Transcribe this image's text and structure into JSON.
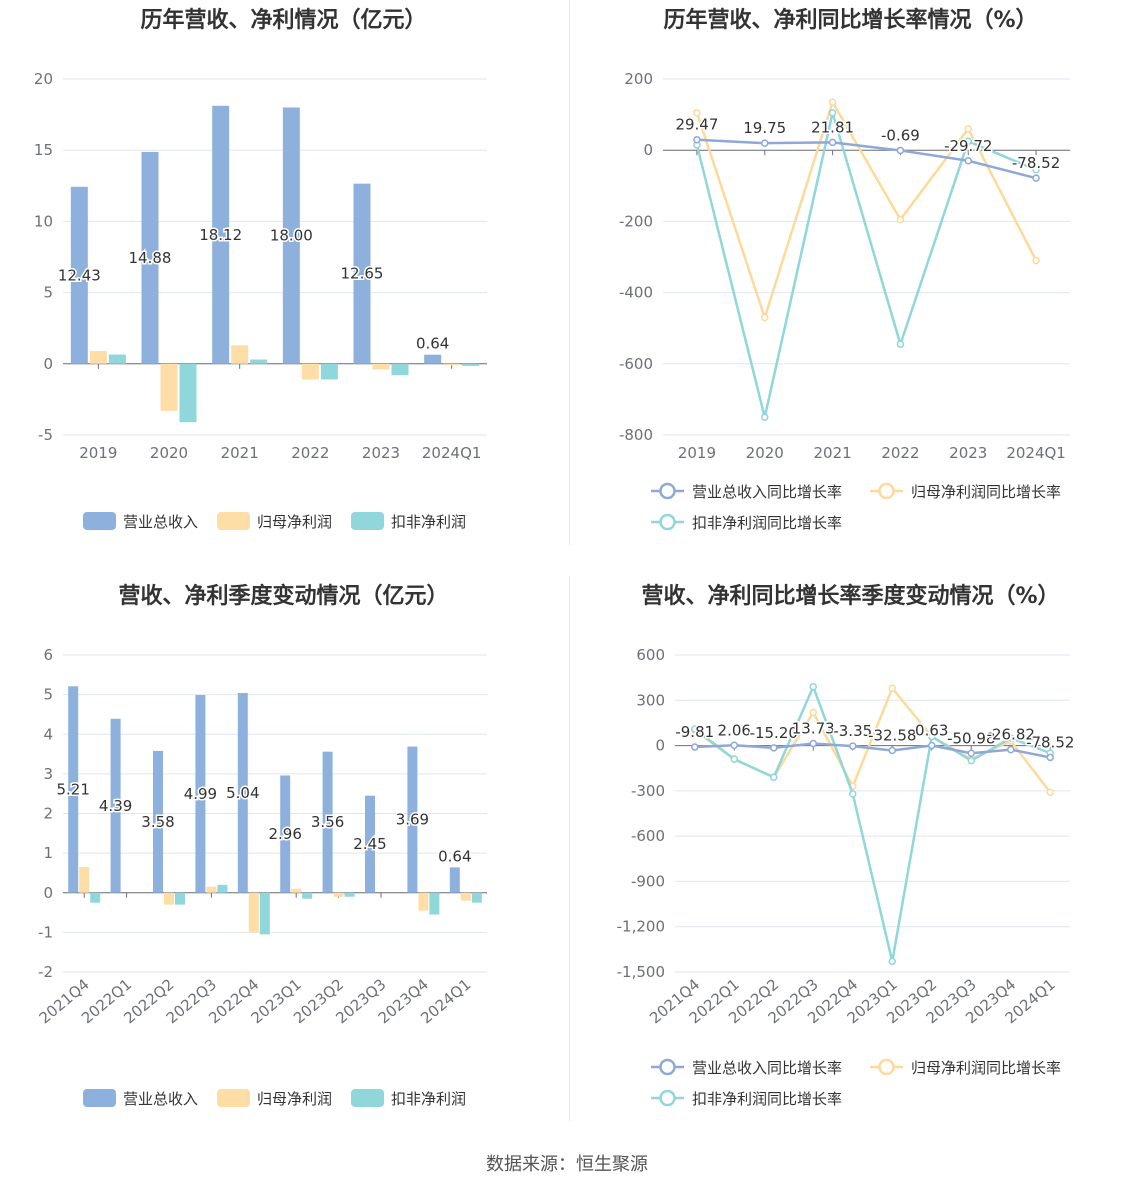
{
  "colors": {
    "revenue": "#8eb0dd",
    "netprofit": "#ffdda6",
    "deducted": "#8fd7db",
    "line_revenue": "#8ea8d8",
    "line_netprofit": "#ffd99a",
    "line_deducted": "#8fd7db"
  },
  "legend_labels": {
    "bar": [
      "营业总收入",
      "归母净利润",
      "扣非净利润"
    ],
    "line": [
      "营业总收入同比增长率",
      "归母净利润同比增长率",
      "扣非净利润同比增长率"
    ]
  },
  "source": "数据来源：恒生聚源",
  "chart_data": [
    {
      "id": "annual_bar",
      "type": "bar",
      "title": "历年营收、净利情况（亿元）",
      "categories": [
        "2019",
        "2020",
        "2021",
        "2022",
        "2023",
        "2024Q1"
      ],
      "ylim": [
        -5,
        20
      ],
      "yticks": [
        "20",
        "15",
        "10",
        "5",
        "0",
        "-5"
      ],
      "ytick_values": [
        20,
        15,
        10,
        5,
        0,
        -5
      ],
      "series": [
        {
          "name": "营业总收入",
          "values": [
            12.43,
            14.88,
            18.12,
            18.0,
            12.65,
            0.64
          ],
          "labels": [
            "12.43",
            "14.88",
            "18.12",
            "18.00",
            "12.65",
            "0.64"
          ]
        },
        {
          "name": "归母净利润",
          "values": [
            0.9,
            -3.3,
            1.3,
            -1.1,
            -0.4,
            -0.1
          ]
        },
        {
          "name": "扣非净利润",
          "values": [
            0.65,
            -4.1,
            0.3,
            -1.1,
            -0.8,
            -0.15
          ]
        }
      ],
      "legend": "bottom"
    },
    {
      "id": "annual_line",
      "type": "line",
      "title": "历年营收、净利同比增长率情况（%）",
      "categories": [
        "2019",
        "2020",
        "2021",
        "2022",
        "2023",
        "2024Q1"
      ],
      "ylim": [
        -800,
        200
      ],
      "yticks": [
        "200",
        "0",
        "-200",
        "-400",
        "-600",
        "-800"
      ],
      "ytick_values": [
        200,
        0,
        -200,
        -400,
        -600,
        -800
      ],
      "series": [
        {
          "name": "营业总收入同比增长率",
          "values": [
            29.47,
            19.75,
            21.81,
            -0.69,
            -29.72,
            -78.52
          ],
          "labels": [
            "29.47",
            "19.75",
            "21.81",
            "-0.69",
            "-29.72",
            "-78.52"
          ]
        },
        {
          "name": "归母净利润同比增长率",
          "values": [
            105,
            -470,
            135,
            -195,
            60,
            -310
          ]
        },
        {
          "name": "扣非净利润同比增长率",
          "values": [
            15,
            -750,
            105,
            -545,
            25,
            -55
          ]
        }
      ],
      "legend": "bottom"
    },
    {
      "id": "quarter_bar",
      "type": "bar",
      "title": "营收、净利季度变动情况（亿元）",
      "categories": [
        "2021Q4",
        "2022Q1",
        "2022Q2",
        "2022Q3",
        "2022Q4",
        "2023Q1",
        "2023Q2",
        "2023Q3",
        "2023Q4",
        "2024Q1"
      ],
      "ylim": [
        -2,
        6
      ],
      "yticks": [
        "6",
        "5",
        "4",
        "3",
        "2",
        "1",
        "0",
        "-1",
        "-2"
      ],
      "ytick_values": [
        6,
        5,
        4,
        3,
        2,
        1,
        0,
        -1,
        -2
      ],
      "series": [
        {
          "name": "营业总收入",
          "values": [
            5.21,
            4.39,
            3.58,
            4.99,
            5.04,
            2.96,
            3.56,
            2.45,
            3.69,
            0.64
          ],
          "labels": [
            "5.21",
            "4.39",
            "3.58",
            "4.99",
            "5.04",
            "2.96",
            "3.56",
            "2.45",
            "3.69",
            "0.64"
          ]
        },
        {
          "name": "归母净利润",
          "values": [
            0.65,
            0,
            -0.3,
            0.15,
            -1.0,
            0.1,
            -0.1,
            0,
            -0.45,
            -0.2
          ]
        },
        {
          "name": "扣非净利润",
          "values": [
            -0.25,
            0,
            -0.3,
            0.2,
            -1.05,
            -0.15,
            -0.1,
            0,
            -0.55,
            -0.25
          ]
        }
      ],
      "legend": "bottom"
    },
    {
      "id": "quarter_line",
      "type": "line",
      "title": "营收、净利同比增长率季度变动情况（%）",
      "categories": [
        "2021Q4",
        "2022Q1",
        "2022Q2",
        "2022Q3",
        "2022Q4",
        "2023Q1",
        "2023Q2",
        "2023Q3",
        "2023Q4",
        "2024Q1"
      ],
      "ylim": [
        -1500,
        600
      ],
      "yticks": [
        "600",
        "300",
        "0",
        "-300",
        "-600",
        "-900",
        "-1,200",
        "-1,500"
      ],
      "ytick_values": [
        600,
        300,
        0,
        -300,
        -600,
        -900,
        -1200,
        -1500
      ],
      "series": [
        {
          "name": "营业总收入同比增长率",
          "values": [
            -9.81,
            2.06,
            -15.2,
            13.73,
            -3.35,
            -32.58,
            0.63,
            -50.98,
            -26.82,
            -78.52
          ],
          "labels": [
            "-9.81",
            "2.06",
            "-15.20",
            "13.73",
            "-3.35",
            "-32.58",
            "0.63",
            "-50.98",
            "-26.82",
            "-78.52"
          ]
        },
        {
          "name": "归母净利润同比增长率",
          "values": [
            100,
            -90,
            -210,
            220,
            -270,
            380,
            60,
            -90,
            30,
            -310
          ]
        },
        {
          "name": "扣非净利润同比增长率",
          "values": [
            110,
            -90,
            -210,
            390,
            -320,
            -1430,
            60,
            -100,
            50,
            -50
          ]
        }
      ],
      "legend": "bottom"
    }
  ]
}
